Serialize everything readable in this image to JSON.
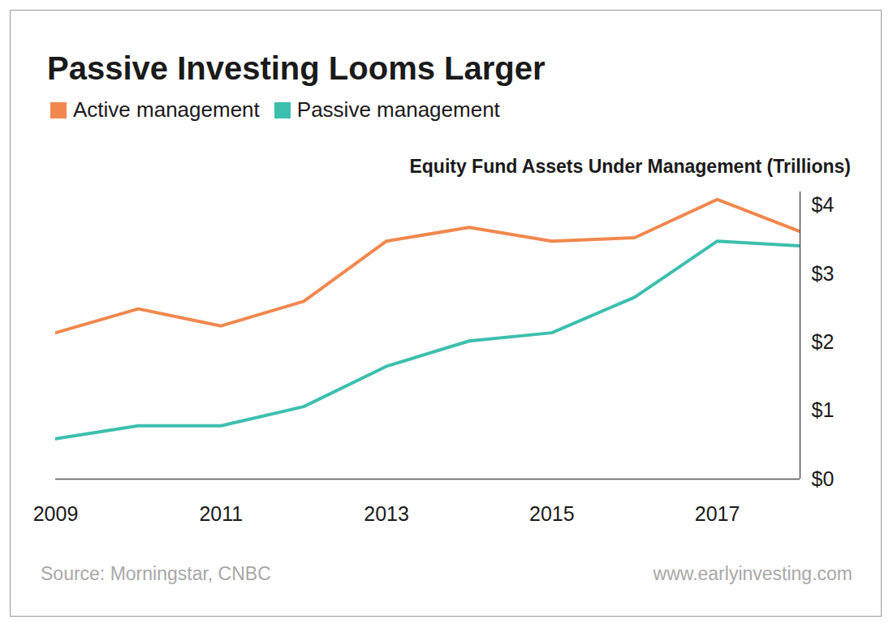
{
  "chart_data": {
    "type": "line",
    "title": "Passive Investing Looms Larger",
    "subtitle": "Equity Fund Assets Under Management (Trillions)",
    "x": [
      2009,
      2010,
      2011,
      2012,
      2013,
      2014,
      2015,
      2016,
      2017,
      2018
    ],
    "series": [
      {
        "name": "Active management",
        "color": "#f0884e",
        "values": [
          2.14,
          2.49,
          2.24,
          2.6,
          3.48,
          3.68,
          3.48,
          3.53,
          4.09,
          3.62
        ]
      },
      {
        "name": "Passive management",
        "color": "#3dbfae",
        "values": [
          0.59,
          0.78,
          0.78,
          1.06,
          1.65,
          2.02,
          2.14,
          2.66,
          3.48,
          3.41
        ]
      }
    ],
    "xlim": [
      2009,
      2018
    ],
    "xticks": [
      2009,
      2011,
      2013,
      2015,
      2017
    ],
    "ylim": [
      0,
      4.2
    ],
    "yticks": [
      {
        "value": 0,
        "label": "$0"
      },
      {
        "value": 1,
        "label": "$1"
      },
      {
        "value": 2,
        "label": "$2"
      },
      {
        "value": 3,
        "label": "$3"
      },
      {
        "value": 4,
        "label": "$4"
      }
    ],
    "grid": false,
    "legend": "top-left",
    "source": "Source: Morningstar, CNBC",
    "credit": "www.earlyinvesting.com"
  }
}
